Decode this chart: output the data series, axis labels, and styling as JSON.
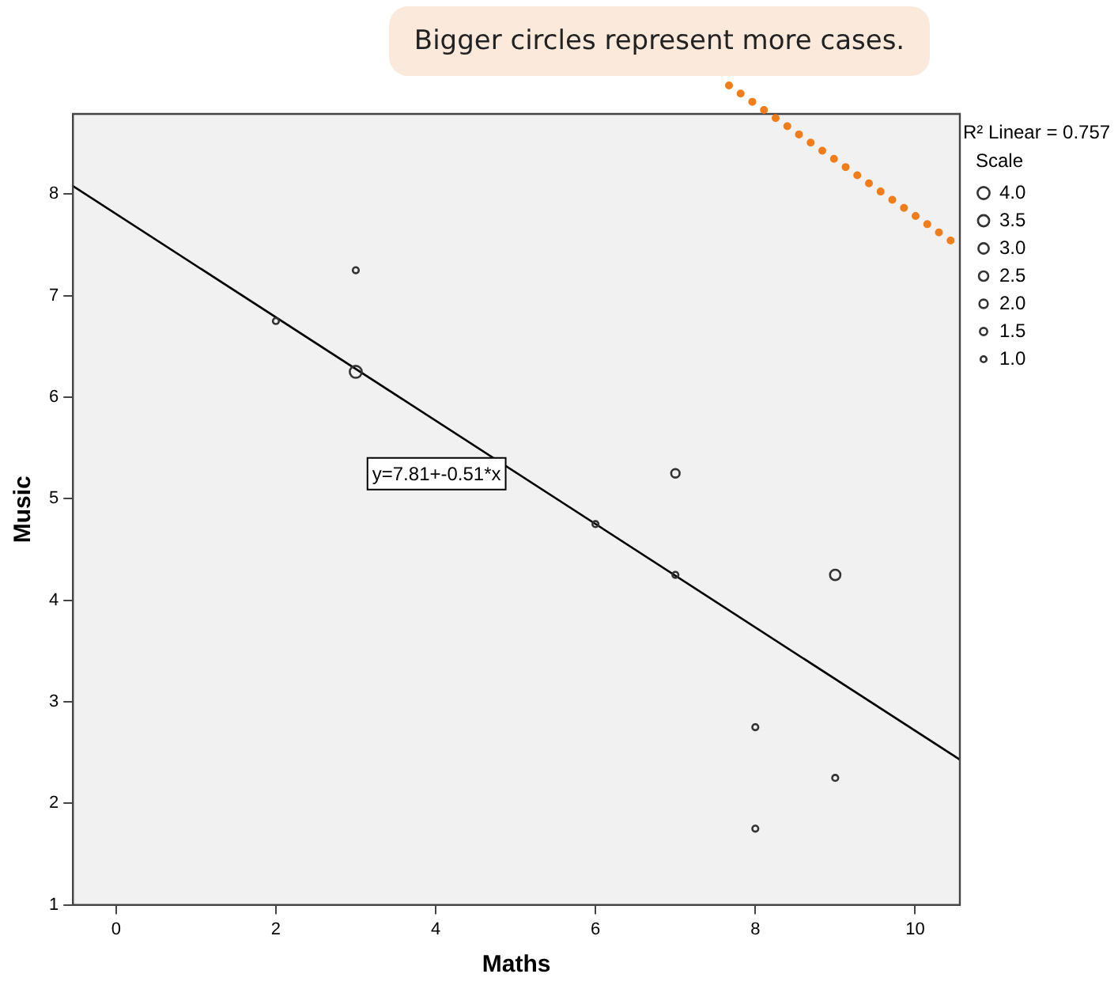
{
  "chart_data": {
    "type": "bubble",
    "xlabel": "Maths",
    "ylabel": "Music",
    "legend_title": "Scale",
    "size_legend": [
      {
        "value": 4,
        "label": "4.0"
      },
      {
        "value": 3.5,
        "label": "3.5"
      },
      {
        "value": 3,
        "label": "3.0"
      },
      {
        "value": 2.5,
        "label": "2.5"
      },
      {
        "value": 2,
        "label": "2.0"
      },
      {
        "value": 1.5,
        "label": "1.5"
      },
      {
        "value": 1,
        "label": "1.0"
      }
    ],
    "series": [
      {
        "type": "bubble",
        "color": "#333333",
        "x": [
          2,
          3,
          3,
          6,
          7,
          7,
          8,
          8,
          9,
          9
        ],
        "values": [
          6.75,
          7.25,
          6.25,
          4.75,
          5.25,
          4.25,
          2.75,
          1.75,
          4.25,
          2.25
        ],
        "sizes": [
          1,
          1,
          4,
          1,
          2,
          1,
          1,
          1,
          3,
          1
        ]
      },
      {
        "type": "line",
        "color": "#000000",
        "x": [
          -0.54,
          10.56
        ],
        "values": [
          8.08,
          2.43
        ]
      }
    ],
    "xlim": [
      -0.54,
      10.56
    ],
    "ylim": [
      1,
      8.79
    ],
    "xticks": [
      0,
      2,
      4,
      6,
      8,
      10
    ],
    "yticks": [
      1,
      2,
      3,
      4,
      5,
      6,
      7,
      8
    ],
    "grid": false,
    "annotations": [
      "y=7.81+-0.51*x",
      "R² Linear = 0.757",
      "Bigger circles represent more cases."
    ]
  }
}
